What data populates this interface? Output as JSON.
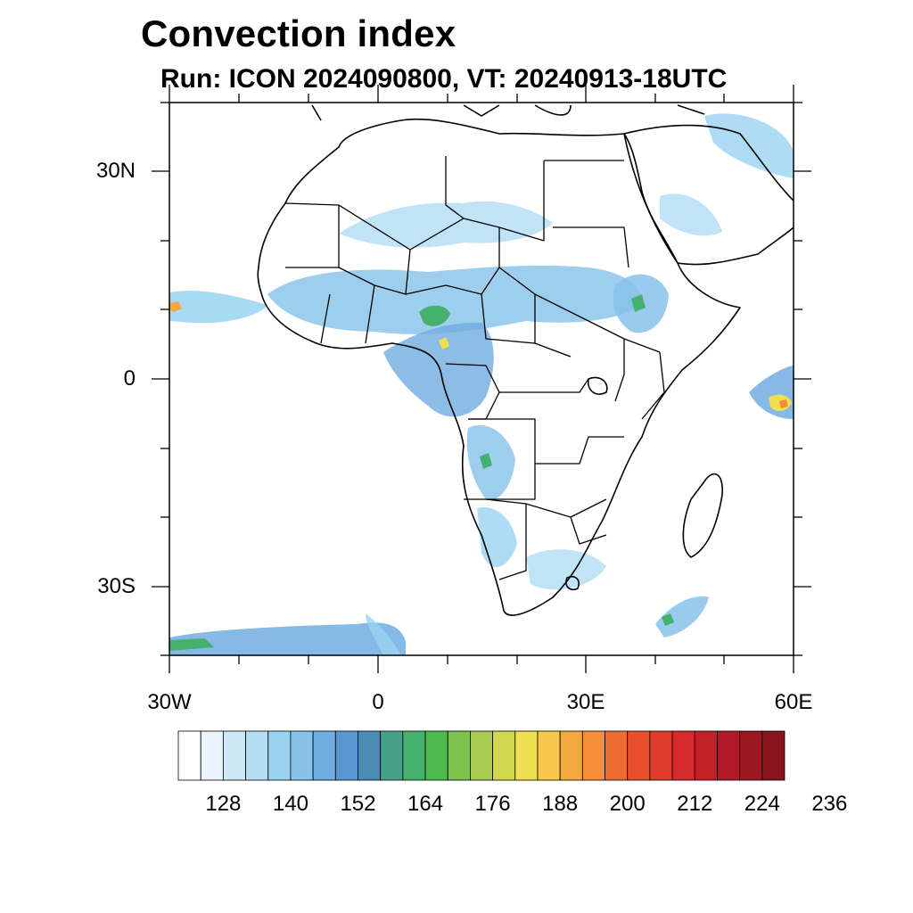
{
  "title": "Convection index",
  "subtitle": "Run: ICON 2024090800,  VT: 20240913-18UTC",
  "axes": {
    "lat_labels": [
      "30N",
      "0",
      "30S"
    ],
    "lon_labels": [
      "30W",
      "0",
      "30E",
      "60E"
    ]
  },
  "colorbar": {
    "labels": [
      "128",
      "140",
      "152",
      "164",
      "176",
      "188",
      "200",
      "212",
      "224",
      "236"
    ],
    "colors": [
      "#ffffff",
      "#e8f4fc",
      "#cde9f8",
      "#b5def5",
      "#9ad3f2",
      "#86c2ea",
      "#71ade0",
      "#5a97d0",
      "#4a8cb4",
      "#48a088",
      "#46b070",
      "#4cba4c",
      "#7cc24c",
      "#a8cc50",
      "#d2d84e",
      "#f0e050",
      "#f8c848",
      "#f6a840",
      "#f48c38",
      "#ee6c30",
      "#e8502c",
      "#e03c2c",
      "#d42c2c",
      "#c42028",
      "#b01a24",
      "#9c1820",
      "#88141c"
    ]
  },
  "map_colors": {
    "light": "#b5def5",
    "mid": "#71ade0",
    "dark": "#4a8cb4",
    "green": "#46b070",
    "yellow": "#f0e050",
    "orange": "#f48c38",
    "red": "#e03c2c"
  }
}
